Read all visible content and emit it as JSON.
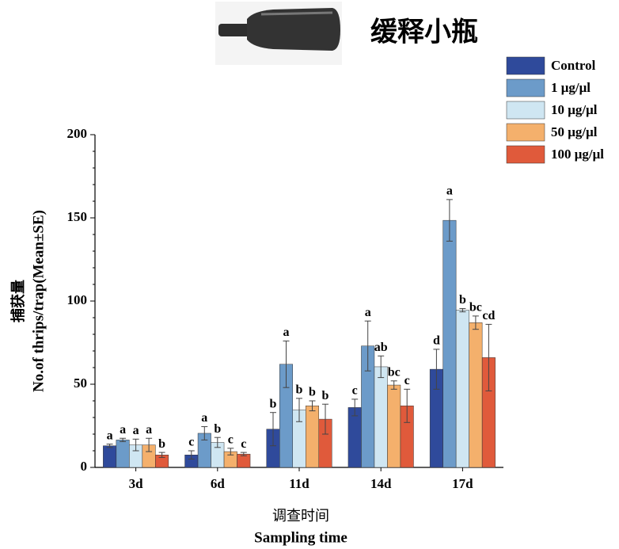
{
  "chart_data": {
    "type": "bar",
    "header": "缓释小瓶",
    "xlabel": [
      "调查时间",
      "Sampling time"
    ],
    "ylabel": [
      "捕获量",
      "No.of thrips/trap(Mean±SE)"
    ],
    "categories": [
      "3d",
      "6d",
      "11d",
      "14d",
      "17d"
    ],
    "ylim": [
      0,
      200
    ],
    "yticks": [
      0,
      50,
      100,
      150,
      200
    ],
    "series": [
      {
        "name": "Control",
        "color": "#2f4a9b",
        "values": [
          13,
          7.5,
          23,
          36,
          59
        ],
        "errors": [
          1,
          2.5,
          10,
          5,
          12
        ],
        "letters": [
          "a",
          "c",
          "b",
          "c",
          "d"
        ]
      },
      {
        "name": "1 μg/μl",
        "color": "#6c9bc9",
        "values": [
          16.5,
          20.5,
          62,
          73,
          148.5
        ],
        "errors": [
          1,
          4,
          14,
          15,
          12.5
        ],
        "letters": [
          "a",
          "a",
          "a",
          "a",
          "a"
        ]
      },
      {
        "name": "10 μg/μl",
        "color": "#cfe6f2",
        "values": [
          13.5,
          15,
          34.5,
          60.5,
          94.5
        ],
        "errors": [
          3.5,
          3,
          7,
          6.5,
          1
        ],
        "letters": [
          "a",
          "b",
          "b",
          "ab",
          "b"
        ]
      },
      {
        "name": "50 μg/μl",
        "color": "#f4b06c",
        "values": [
          13.5,
          9.5,
          37,
          49.5,
          87
        ],
        "errors": [
          4,
          2,
          3,
          2.5,
          4
        ],
        "letters": [
          "a",
          "c",
          "b",
          "bc",
          "bc"
        ]
      },
      {
        "name": "100 μg/μl",
        "color": "#e05a3b",
        "values": [
          7.5,
          8,
          29,
          37,
          66
        ],
        "errors": [
          1.5,
          1,
          9,
          10,
          20
        ],
        "letters": [
          "b",
          "c",
          "b",
          "c",
          "cd"
        ]
      }
    ]
  }
}
